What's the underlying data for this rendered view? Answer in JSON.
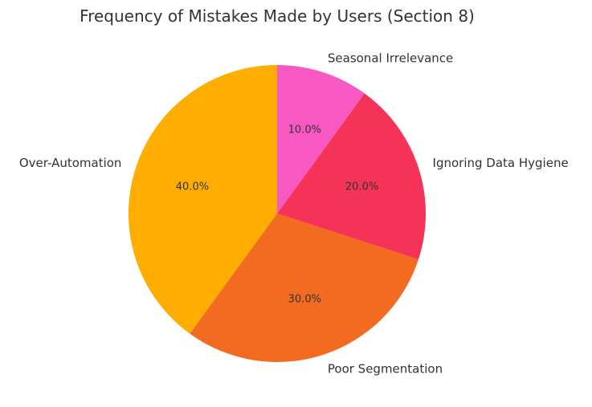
{
  "chart_data": {
    "type": "pie",
    "title": "Frequency of Mistakes Made by Users (Section 8)",
    "categories": [
      "Over-Automation",
      "Poor Segmentation",
      "Ignoring Data Hygiene",
      "Seasonal Irrelevance"
    ],
    "values": [
      40,
      30,
      20,
      10
    ],
    "percent_labels": [
      "40.0%",
      "30.0%",
      "20.0%",
      "10.0%"
    ],
    "colors": [
      "#FFAD00",
      "#F26B21",
      "#F53358",
      "#F858C1"
    ],
    "start_angle_deg": 90,
    "direction": "counterclockwise",
    "legend": "none",
    "xlabel": "",
    "ylabel": ""
  }
}
